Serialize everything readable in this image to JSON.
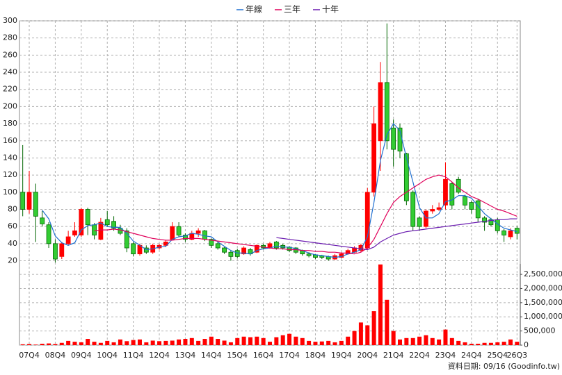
{
  "chart_data": {
    "type": "candlestick",
    "legend_position": "top",
    "grid": true,
    "up_color": "#ff0000",
    "down_color": "#33cc33",
    "down_edge": "#006600",
    "categories": [
      null,
      "07Q4",
      null,
      null,
      null,
      "08Q4",
      null,
      null,
      null,
      "09Q4",
      null,
      null,
      null,
      "10Q4",
      null,
      null,
      null,
      "11Q4",
      null,
      null,
      null,
      "12Q4",
      null,
      null,
      null,
      "13Q4",
      null,
      null,
      null,
      "14Q4",
      null,
      null,
      null,
      "15Q4",
      null,
      null,
      null,
      "16Q4",
      null,
      null,
      null,
      "17Q4",
      null,
      null,
      null,
      "18Q4",
      null,
      null,
      null,
      "19Q4",
      null,
      null,
      null,
      "20Q4",
      null,
      null,
      null,
      "21Q4",
      null,
      null,
      null,
      "22Q4",
      null,
      null,
      null,
      "23Q4",
      null,
      null,
      null,
      "24Q4",
      null,
      null,
      null,
      "25Q4",
      null,
      null,
      "26Q3"
    ],
    "open": [
      100,
      80,
      100,
      70,
      62,
      40,
      25,
      40,
      50,
      50,
      80,
      62,
      45,
      68,
      66,
      58,
      55,
      40,
      28,
      35,
      30,
      35,
      38,
      45,
      60,
      50,
      45,
      52,
      55,
      45,
      40,
      35,
      30,
      32,
      28,
      33,
      30,
      38,
      35,
      42,
      38,
      36,
      35,
      32,
      28,
      27,
      26,
      25,
      22,
      24,
      28,
      30,
      32,
      35,
      100,
      160,
      228,
      175,
      175,
      145,
      100,
      70,
      60,
      78,
      80,
      85,
      110,
      115,
      95,
      88,
      90,
      70,
      68,
      68,
      55,
      48,
      58
    ],
    "high": [
      155,
      125,
      110,
      78,
      65,
      45,
      42,
      55,
      65,
      82,
      82,
      64,
      70,
      78,
      72,
      62,
      58,
      42,
      40,
      38,
      40,
      40,
      44,
      65,
      65,
      52,
      55,
      58,
      56,
      46,
      42,
      36,
      32,
      34,
      37,
      35,
      39,
      40,
      42,
      43,
      40,
      37,
      36,
      33,
      30,
      28,
      27,
      26,
      28,
      30,
      34,
      37,
      40,
      105,
      200,
      252,
      297,
      185,
      180,
      146,
      102,
      72,
      80,
      85,
      88,
      135,
      112,
      118,
      97,
      90,
      92,
      72,
      70,
      70,
      57,
      58,
      60
    ],
    "low": [
      72,
      75,
      42,
      60,
      35,
      18,
      22,
      38,
      48,
      48,
      50,
      45,
      44,
      60,
      55,
      50,
      30,
      25,
      26,
      28,
      28,
      33,
      36,
      44,
      48,
      42,
      44,
      48,
      43,
      35,
      33,
      28,
      20,
      23,
      27,
      26,
      29,
      33,
      34,
      33,
      33,
      30,
      28,
      26,
      24,
      22,
      22,
      20,
      21,
      23,
      27,
      29,
      30,
      33,
      95,
      125,
      150,
      130,
      140,
      85,
      55,
      55,
      58,
      75,
      78,
      80,
      80,
      98,
      80,
      75,
      65,
      55,
      60,
      52,
      42,
      45,
      45
    ],
    "close": [
      80,
      100,
      72,
      63,
      40,
      22,
      40,
      48,
      55,
      80,
      62,
      50,
      65,
      62,
      58,
      52,
      35,
      28,
      38,
      30,
      38,
      38,
      42,
      60,
      50,
      45,
      52,
      55,
      45,
      38,
      35,
      30,
      25,
      25,
      35,
      28,
      38,
      35,
      40,
      35,
      35,
      32,
      30,
      28,
      26,
      24,
      24,
      22,
      26,
      28,
      32,
      35,
      38,
      100,
      180,
      228,
      160,
      150,
      148,
      90,
      60,
      60,
      78,
      80,
      82,
      115,
      85,
      100,
      85,
      80,
      70,
      65,
      62,
      55,
      50,
      55,
      52
    ],
    "series": [
      {
        "name": "年線",
        "color": "#1f6fd0",
        "values": [
          null,
          null,
          null,
          79,
          69,
          49,
          41,
          38,
          41,
          56,
          61,
          62,
          64,
          60,
          59,
          59,
          52,
          43,
          38,
          33,
          34,
          36,
          37,
          45,
          48,
          49,
          52,
          51,
          49,
          48,
          42,
          37,
          32,
          29,
          29,
          28,
          32,
          34,
          35,
          37,
          36,
          36,
          34,
          32,
          29,
          27,
          26,
          25,
          24,
          25,
          28,
          30,
          33,
          48,
          88,
          137,
          167,
          180,
          172,
          140,
          112,
          82,
          70,
          70,
          75,
          89,
          91,
          96,
          96,
          93,
          84,
          75,
          69,
          63,
          58,
          56,
          54
        ]
      },
      {
        "name": "三年",
        "color": "#e0005a",
        "values": [
          null,
          null,
          null,
          null,
          null,
          null,
          null,
          null,
          null,
          null,
          null,
          55,
          56,
          56,
          57,
          56,
          54,
          52,
          50,
          48,
          46,
          45,
          44,
          44,
          45,
          46,
          46,
          46,
          45,
          44,
          43,
          42,
          41,
          40,
          39,
          38,
          37,
          36,
          35,
          34,
          34,
          33,
          33,
          32,
          32,
          31,
          31,
          30,
          30,
          29,
          29,
          28,
          30,
          35,
          45,
          60,
          75,
          88,
          95,
          100,
          105,
          110,
          115,
          118,
          120,
          118,
          112,
          105,
          100,
          95,
          92,
          88,
          84,
          80,
          78,
          75,
          72
        ]
      },
      {
        "name": "十年",
        "color": "#6a1bb0",
        "values": [
          null,
          null,
          null,
          null,
          null,
          null,
          null,
          null,
          null,
          null,
          null,
          null,
          null,
          null,
          null,
          null,
          null,
          null,
          null,
          null,
          null,
          null,
          null,
          null,
          null,
          null,
          null,
          null,
          null,
          null,
          null,
          null,
          null,
          null,
          null,
          null,
          null,
          null,
          null,
          47,
          46,
          45,
          44,
          43,
          42,
          41,
          40,
          39,
          38,
          37,
          36,
          35,
          34,
          33,
          36,
          42,
          46,
          50,
          52,
          54,
          55,
          56,
          57,
          58,
          59,
          60,
          61,
          62,
          63,
          64,
          65,
          66,
          67,
          68,
          68,
          69,
          69
        ]
      }
    ],
    "ylim": [
      18,
      300
    ],
    "yticks": [
      20,
      40,
      60,
      80,
      100,
      120,
      140,
      160,
      180,
      200,
      220,
      240,
      260,
      280,
      300
    ],
    "volume": {
      "color": "#ff0000",
      "ylim": [
        0,
        2870000
      ],
      "yticks": [
        0,
        {
          "value": 500000,
          "label": "500,000"
        },
        {
          "value": 1000000,
          "label": "1,000,000"
        },
        {
          "value": 1500000,
          "label": "1,500,000"
        },
        {
          "value": 2000000,
          "label": "2,000,000"
        },
        {
          "value": 2500000,
          "label": "2,500,000"
        }
      ],
      "values": [
        30000,
        40000,
        20000,
        50000,
        60000,
        40000,
        80000,
        150000,
        120000,
        100000,
        220000,
        120000,
        80000,
        150000,
        100000,
        200000,
        140000,
        180000,
        200000,
        100000,
        160000,
        140000,
        150000,
        160000,
        200000,
        220000,
        250000,
        150000,
        220000,
        300000,
        220000,
        160000,
        100000,
        250000,
        300000,
        280000,
        300000,
        250000,
        120000,
        280000,
        350000,
        400000,
        300000,
        250000,
        150000,
        120000,
        130000,
        150000,
        100000,
        150000,
        300000,
        500000,
        800000,
        700000,
        1200000,
        2850000,
        1600000,
        500000,
        200000,
        250000,
        250000,
        300000,
        350000,
        250000,
        200000,
        550000,
        250000,
        150000,
        100000,
        50000,
        50000,
        80000,
        80000,
        100000,
        120000,
        200000,
        120000
      ]
    },
    "source_note": "資料日期: 09/16  (Goodinfo.tw)"
  }
}
